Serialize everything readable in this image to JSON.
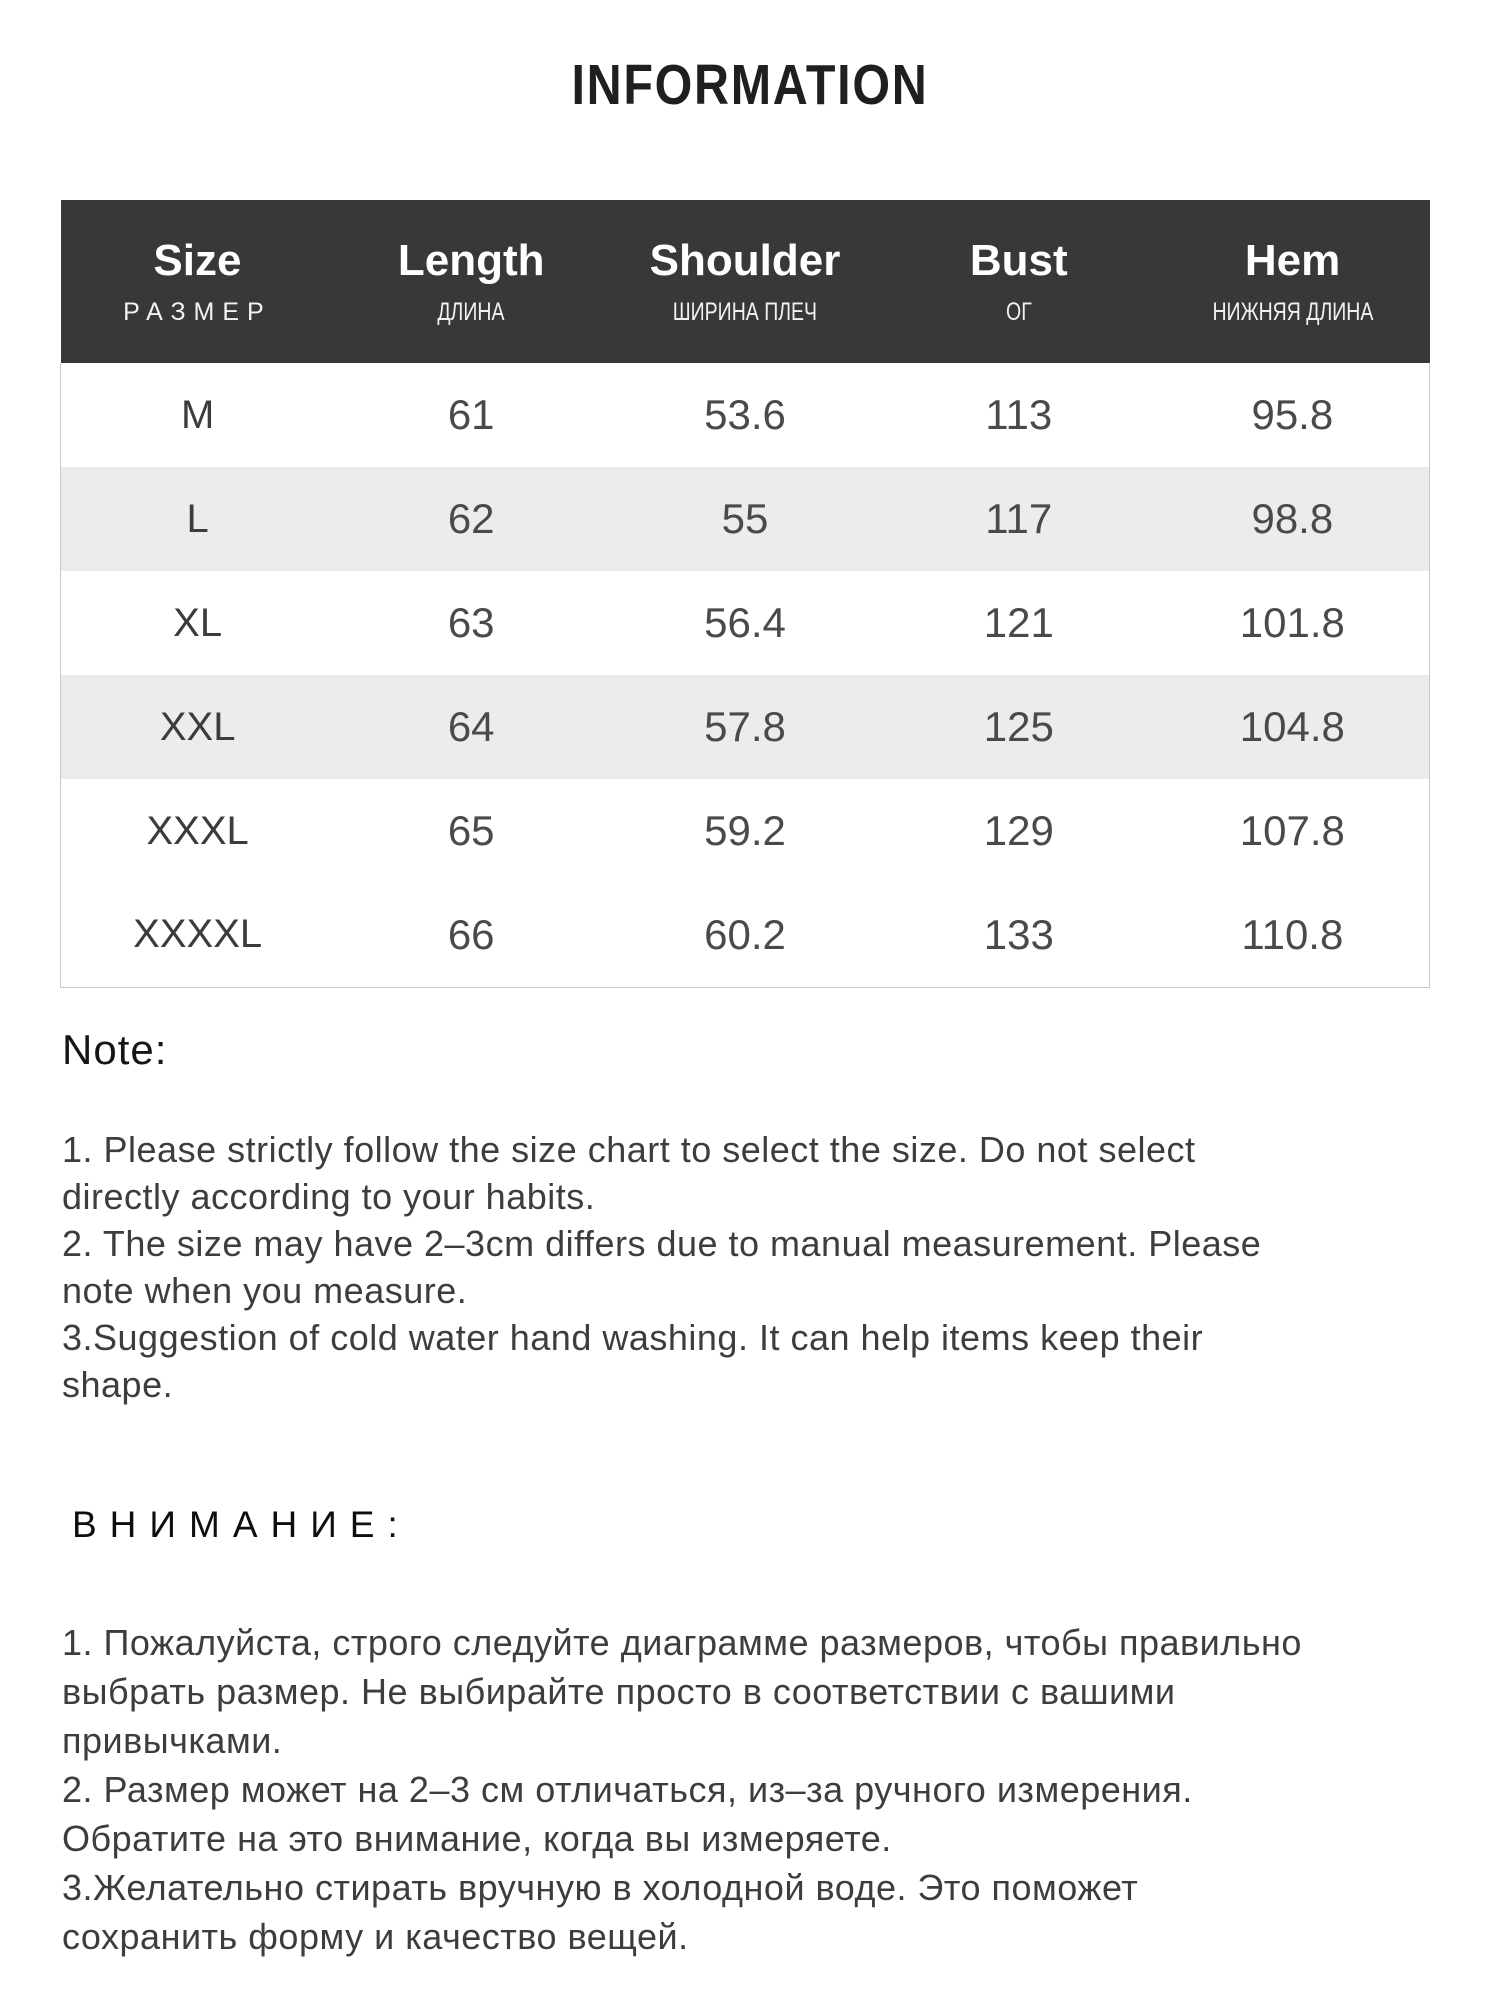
{
  "page": {
    "title": "INFORMATION"
  },
  "colors": {
    "header_bg": "#383838",
    "header_text": "#ffffff",
    "stripe_row_bg": "#ececec",
    "table_border": "#c9c9c9",
    "body_text": "#3d3d3d"
  },
  "size_table": {
    "columns": [
      {
        "en": "Size",
        "ru": "РАЗМЕР"
      },
      {
        "en": "Length",
        "ru": "ДЛИНА"
      },
      {
        "en": "Shoulder",
        "ru": "ШИРИНА ПЛЕЧ"
      },
      {
        "en": "Bust",
        "ru": "ОГ"
      },
      {
        "en": "Hem",
        "ru": "НИЖНЯЯ ДЛИНА"
      }
    ],
    "rows": [
      {
        "size": "M",
        "length": "61",
        "shoulder": "53.6",
        "bust": "113",
        "hem": "95.8"
      },
      {
        "size": "L",
        "length": "62",
        "shoulder": "55",
        "bust": "117",
        "hem": "98.8"
      },
      {
        "size": "XL",
        "length": "63",
        "shoulder": "56.4",
        "bust": "121",
        "hem": "101.8"
      },
      {
        "size": "XXL",
        "length": "64",
        "shoulder": "57.8",
        "bust": "125",
        "hem": "104.8"
      },
      {
        "size": "XXXL",
        "length": "65",
        "shoulder": "59.2",
        "bust": "129",
        "hem": "107.8"
      },
      {
        "size": "XXXXL",
        "length": "66",
        "shoulder": "60.2",
        "bust": "133",
        "hem": "110.8"
      }
    ]
  },
  "note": {
    "heading": "Note:",
    "lines": [
      "1. Please strictly follow the size chart  to select the size. Do not select",
      "directly according to your habits.",
      "2. The size may have 2–3cm differs due to manual measurement. Please",
      "note when you measure.",
      "3.Suggestion of cold water hand washing. It can help items keep their",
      "shape."
    ]
  },
  "attention": {
    "heading": "ВНИМАНИЕ:",
    "lines": [
      "1. Пожалуйста, строго следуйте диаграмме размеров, чтобы правильно",
      "выбрать размер. Не выбирайте просто в соответствии с вашими",
      "привычками.",
      "2. Размер может на 2–3 см отличаться, из–за ручного измерения.",
      "Обратите на это внимание, когда вы измеряете.",
      "3.Желательно стирать вручную в холодной воде. Это поможет",
      "сохранить форму и качество вещей."
    ]
  }
}
